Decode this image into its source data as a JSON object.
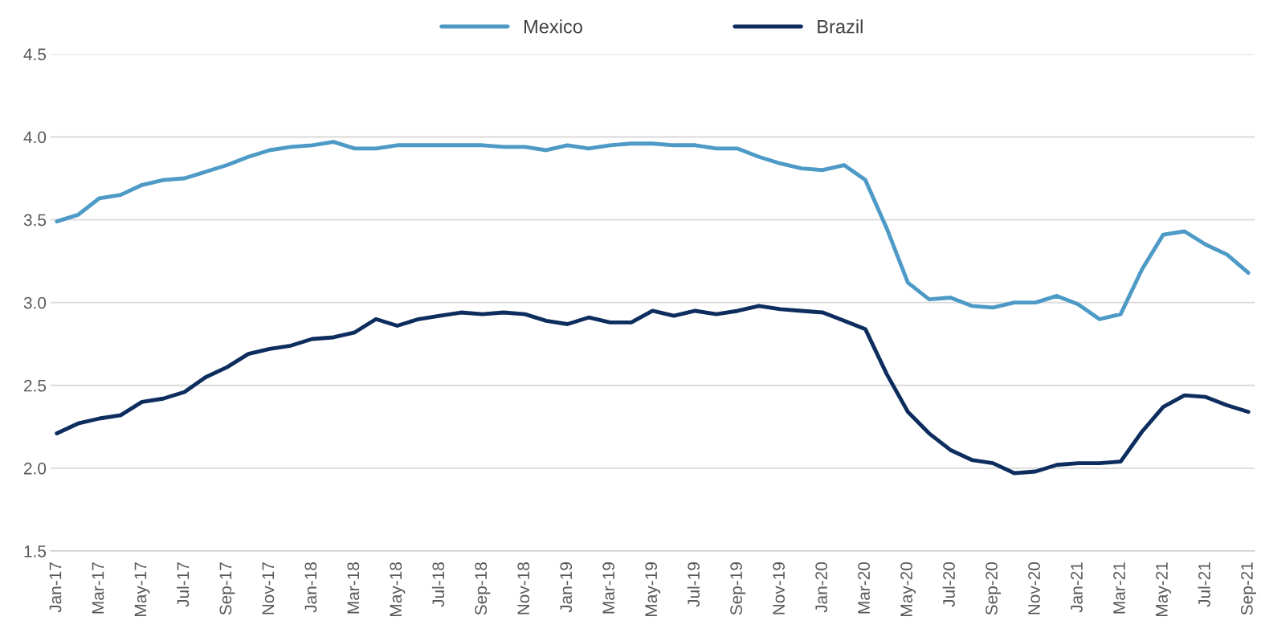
{
  "chart_data": {
    "type": "line",
    "categories": [
      "Jan-17",
      null,
      "Mar-17",
      null,
      "May-17",
      null,
      "Jul-17",
      null,
      "Sep-17",
      null,
      "Nov-17",
      null,
      "Jan-18",
      null,
      "Mar-18",
      null,
      "May-18",
      null,
      "Jul-18",
      null,
      "Sep-18",
      null,
      "Nov-18",
      null,
      "Jan-19",
      null,
      "Mar-19",
      null,
      "May-19",
      null,
      "Jul-19",
      null,
      "Sep-19",
      null,
      "Nov-19",
      null,
      "Jan-20",
      null,
      "Mar-20",
      null,
      "May-20",
      null,
      "Jul-20",
      null,
      "Sep-20",
      null,
      "Nov-20",
      null,
      "Jan-21",
      null,
      "Mar-21",
      null,
      "May-21",
      null,
      "Jul-21",
      null,
      "Sep-21"
    ],
    "series": [
      {
        "name": "Mexico",
        "color": "#4e9ac7",
        "values": [
          3.49,
          3.53,
          3.63,
          3.65,
          3.71,
          3.74,
          3.75,
          3.79,
          3.83,
          3.88,
          3.92,
          3.94,
          3.95,
          3.97,
          3.93,
          3.93,
          3.95,
          3.95,
          3.95,
          3.95,
          3.95,
          3.94,
          3.94,
          3.92,
          3.95,
          3.93,
          3.95,
          3.96,
          3.96,
          3.95,
          3.95,
          3.93,
          3.93,
          3.88,
          3.84,
          3.81,
          3.8,
          3.83,
          3.74,
          3.45,
          3.12,
          3.02,
          3.03,
          2.98,
          2.97,
          3.0,
          3.0,
          3.04,
          2.99,
          2.9,
          2.93,
          3.2,
          3.41,
          3.43,
          3.35,
          3.29,
          3.18
        ]
      },
      {
        "name": "Brazil",
        "color": "#0c2d5e",
        "values": [
          2.21,
          2.27,
          2.3,
          2.32,
          2.4,
          2.42,
          2.46,
          2.55,
          2.61,
          2.69,
          2.72,
          2.74,
          2.78,
          2.79,
          2.82,
          2.9,
          2.86,
          2.9,
          2.92,
          2.94,
          2.93,
          2.94,
          2.93,
          2.89,
          2.87,
          2.91,
          2.88,
          2.88,
          2.95,
          2.92,
          2.95,
          2.93,
          2.95,
          2.98,
          2.96,
          2.95,
          2.94,
          2.89,
          2.84,
          2.57,
          2.34,
          2.21,
          2.11,
          2.05,
          2.03,
          1.97,
          1.98,
          2.02,
          2.03,
          2.03,
          2.04,
          2.22,
          2.37,
          2.44,
          2.43,
          2.38,
          2.34
        ]
      }
    ],
    "ylim": [
      1.5,
      4.5
    ],
    "yticks": [
      {
        "value": 1.5,
        "label": "1.5"
      },
      {
        "value": 2,
        "label": "2.0"
      },
      {
        "value": 2.5,
        "label": "2.5"
      },
      {
        "value": 3,
        "label": "3.0"
      },
      {
        "value": 3.5,
        "label": "3.5"
      },
      {
        "value": 4,
        "label": "4.0"
      },
      {
        "value": 4.5,
        "label": "4.5"
      }
    ],
    "grid": "y",
    "legend": "top",
    "line_style": "solid",
    "marker": "none"
  }
}
